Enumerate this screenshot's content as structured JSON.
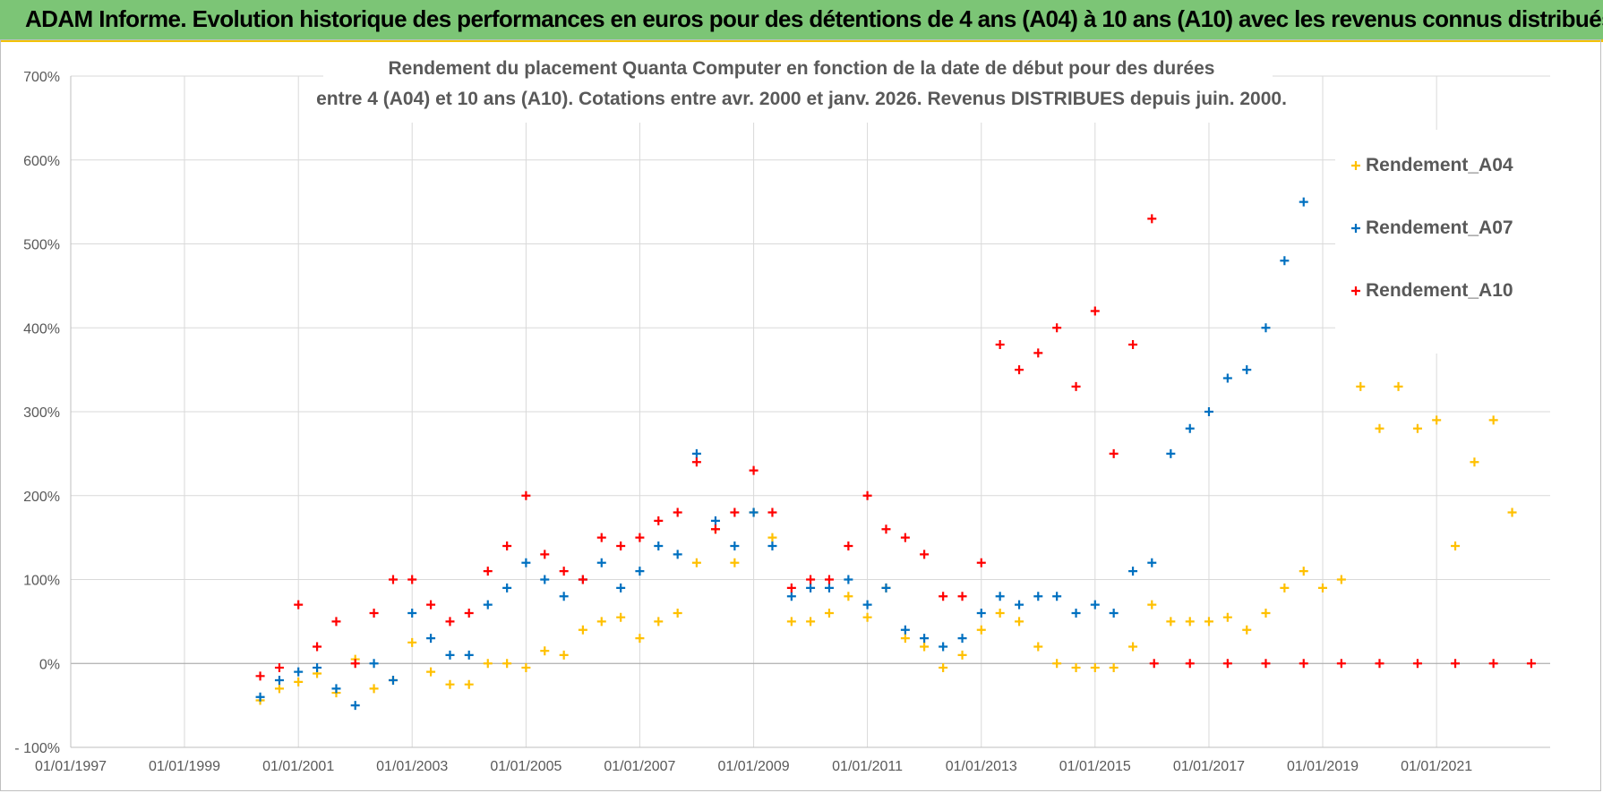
{
  "banner": {
    "text": "ADAM Informe. Evolution historique des performances en euros pour des détentions de 4 ans (A04) à 10 ans (A10) avec les revenus connus distribués"
  },
  "chart_data": {
    "type": "scatter",
    "title_lines": [
      "Rendement du placement Quanta Computer  en fonction de la date de début pour des durées",
      "entre 4 (A04) et 10 ans (A10).  Cotations entre avr. 2000 et janv. 2026. Revenus DISTRIBUES depuis juin. 2000."
    ],
    "xlim": [
      "1997-01-01",
      "2022-12-31"
    ],
    "ylim": [
      -100,
      700
    ],
    "x_ticks": [
      "01/01/1997",
      "01/01/1999",
      "01/01/2001",
      "01/01/2003",
      "01/01/2005",
      "01/01/2007",
      "01/01/2009",
      "01/01/2011",
      "01/01/2013",
      "01/01/2015",
      "01/01/2017",
      "01/01/2019",
      "01/01/2021"
    ],
    "x_tick_dates": [
      "1997-01-01",
      "1999-01-01",
      "2001-01-01",
      "2003-01-01",
      "2005-01-01",
      "2007-01-01",
      "2009-01-01",
      "2011-01-01",
      "2013-01-01",
      "2015-01-01",
      "2017-01-01",
      "2019-01-01",
      "2021-01-01"
    ],
    "y_ticks": [
      -100,
      0,
      100,
      200,
      300,
      400,
      500,
      600,
      700
    ],
    "y_tick_labels": [
      "- 100%",
      "0%",
      "100%",
      "200%",
      "300%",
      "400%",
      "500%",
      "600%",
      "700%"
    ],
    "grid": true,
    "legend_position": "top-right",
    "marker": "+",
    "series": [
      {
        "name": "Rendement_A04",
        "color": "#ffc000",
        "points": [
          [
            "2000-05-01",
            -44
          ],
          [
            "2000-09-01",
            -30
          ],
          [
            "2001-01-01",
            -22
          ],
          [
            "2001-05-01",
            -12
          ],
          [
            "2001-09-01",
            -35
          ],
          [
            "2002-01-01",
            5
          ],
          [
            "2002-05-01",
            -30
          ],
          [
            "2002-09-01",
            -20
          ],
          [
            "2003-01-01",
            25
          ],
          [
            "2003-05-01",
            -10
          ],
          [
            "2003-09-01",
            -25
          ],
          [
            "2004-01-01",
            -25
          ],
          [
            "2004-05-01",
            0
          ],
          [
            "2004-09-01",
            0
          ],
          [
            "2005-01-01",
            -5
          ],
          [
            "2005-05-01",
            15
          ],
          [
            "2005-09-01",
            10
          ],
          [
            "2006-01-01",
            40
          ],
          [
            "2006-05-01",
            50
          ],
          [
            "2006-09-01",
            55
          ],
          [
            "2007-01-01",
            30
          ],
          [
            "2007-05-01",
            50
          ],
          [
            "2007-09-01",
            60
          ],
          [
            "2008-01-01",
            120
          ],
          [
            "2008-05-01",
            160
          ],
          [
            "2008-09-01",
            120
          ],
          [
            "2009-01-01",
            180
          ],
          [
            "2009-05-01",
            150
          ],
          [
            "2009-09-01",
            50
          ],
          [
            "2010-01-01",
            50
          ],
          [
            "2010-05-01",
            60
          ],
          [
            "2010-09-01",
            80
          ],
          [
            "2011-01-01",
            55
          ],
          [
            "2011-05-01",
            90
          ],
          [
            "2011-09-01",
            30
          ],
          [
            "2012-01-01",
            20
          ],
          [
            "2012-05-01",
            -5
          ],
          [
            "2012-09-01",
            10
          ],
          [
            "2013-01-01",
            40
          ],
          [
            "2013-05-01",
            60
          ],
          [
            "2013-09-01",
            50
          ],
          [
            "2014-01-01",
            20
          ],
          [
            "2014-05-01",
            0
          ],
          [
            "2014-09-01",
            -5
          ],
          [
            "2015-01-01",
            -5
          ],
          [
            "2015-05-01",
            -5
          ],
          [
            "2015-09-01",
            20
          ],
          [
            "2016-01-01",
            70
          ],
          [
            "2016-05-01",
            50
          ],
          [
            "2016-09-01",
            50
          ],
          [
            "2017-01-01",
            50
          ],
          [
            "2017-05-01",
            55
          ],
          [
            "2017-09-01",
            40
          ],
          [
            "2018-01-01",
            60
          ],
          [
            "2018-05-01",
            90
          ],
          [
            "2018-09-01",
            110
          ],
          [
            "2019-01-01",
            90
          ],
          [
            "2019-05-01",
            100
          ],
          [
            "2019-09-01",
            330
          ],
          [
            "2020-01-01",
            280
          ],
          [
            "2020-05-01",
            330
          ],
          [
            "2020-09-01",
            280
          ],
          [
            "2021-01-01",
            290
          ],
          [
            "2021-05-01",
            140
          ],
          [
            "2021-09-01",
            240
          ],
          [
            "2022-01-01",
            290
          ],
          [
            "2022-05-01",
            180
          ]
        ]
      },
      {
        "name": "Rendement_A07",
        "color": "#0070c0",
        "points": [
          [
            "2000-05-01",
            -40
          ],
          [
            "2000-09-01",
            -20
          ],
          [
            "2001-01-01",
            -10
          ],
          [
            "2001-05-01",
            -5
          ],
          [
            "2001-09-01",
            -30
          ],
          [
            "2002-01-01",
            -50
          ],
          [
            "2002-05-01",
            0
          ],
          [
            "2002-09-01",
            -20
          ],
          [
            "2003-01-01",
            60
          ],
          [
            "2003-05-01",
            30
          ],
          [
            "2003-09-01",
            10
          ],
          [
            "2004-01-01",
            10
          ],
          [
            "2004-05-01",
            70
          ],
          [
            "2004-09-01",
            90
          ],
          [
            "2005-01-01",
            120
          ],
          [
            "2005-05-01",
            100
          ],
          [
            "2005-09-01",
            80
          ],
          [
            "2006-01-01",
            100
          ],
          [
            "2006-05-01",
            120
          ],
          [
            "2006-09-01",
            90
          ],
          [
            "2007-01-01",
            110
          ],
          [
            "2007-05-01",
            140
          ],
          [
            "2007-09-01",
            130
          ],
          [
            "2008-01-01",
            250
          ],
          [
            "2008-05-01",
            170
          ],
          [
            "2008-09-01",
            140
          ],
          [
            "2009-01-01",
            180
          ],
          [
            "2009-05-01",
            140
          ],
          [
            "2009-09-01",
            80
          ],
          [
            "2010-01-01",
            90
          ],
          [
            "2010-05-01",
            90
          ],
          [
            "2010-09-01",
            100
          ],
          [
            "2011-01-01",
            70
          ],
          [
            "2011-05-01",
            90
          ],
          [
            "2011-09-01",
            40
          ],
          [
            "2012-01-01",
            30
          ],
          [
            "2012-05-01",
            20
          ],
          [
            "2012-09-01",
            30
          ],
          [
            "2013-01-01",
            60
          ],
          [
            "2013-05-01",
            80
          ],
          [
            "2013-09-01",
            70
          ],
          [
            "2014-01-01",
            80
          ],
          [
            "2014-05-01",
            80
          ],
          [
            "2014-09-01",
            60
          ],
          [
            "2015-01-01",
            70
          ],
          [
            "2015-05-01",
            60
          ],
          [
            "2015-09-01",
            110
          ],
          [
            "2016-01-01",
            120
          ],
          [
            "2016-05-01",
            250
          ],
          [
            "2016-09-01",
            280
          ],
          [
            "2017-01-01",
            300
          ],
          [
            "2017-05-01",
            340
          ],
          [
            "2017-09-01",
            350
          ],
          [
            "2018-01-01",
            400
          ],
          [
            "2018-05-01",
            480
          ],
          [
            "2018-09-01",
            550
          ]
        ]
      },
      {
        "name": "Rendement_A10",
        "color": "#ff0000",
        "points": [
          [
            "2000-05-01",
            -15
          ],
          [
            "2000-09-01",
            -5
          ],
          [
            "2001-01-01",
            70
          ],
          [
            "2001-05-01",
            20
          ],
          [
            "2001-09-01",
            50
          ],
          [
            "2002-01-01",
            0
          ],
          [
            "2002-05-01",
            60
          ],
          [
            "2002-09-01",
            100
          ],
          [
            "2003-01-01",
            100
          ],
          [
            "2003-05-01",
            70
          ],
          [
            "2003-09-01",
            50
          ],
          [
            "2004-01-01",
            60
          ],
          [
            "2004-05-01",
            110
          ],
          [
            "2004-09-01",
            140
          ],
          [
            "2005-01-01",
            200
          ],
          [
            "2005-05-01",
            130
          ],
          [
            "2005-09-01",
            110
          ],
          [
            "2006-01-01",
            100
          ],
          [
            "2006-05-01",
            150
          ],
          [
            "2006-09-01",
            140
          ],
          [
            "2007-01-01",
            150
          ],
          [
            "2007-05-01",
            170
          ],
          [
            "2007-09-01",
            180
          ],
          [
            "2008-01-01",
            240
          ],
          [
            "2008-05-01",
            160
          ],
          [
            "2008-09-01",
            180
          ],
          [
            "2009-01-01",
            230
          ],
          [
            "2009-05-01",
            180
          ],
          [
            "2009-09-01",
            90
          ],
          [
            "2010-01-01",
            100
          ],
          [
            "2010-05-01",
            100
          ],
          [
            "2010-09-01",
            140
          ],
          [
            "2011-01-01",
            200
          ],
          [
            "2011-05-01",
            160
          ],
          [
            "2011-09-01",
            150
          ],
          [
            "2012-01-01",
            130
          ],
          [
            "2012-05-01",
            80
          ],
          [
            "2012-09-01",
            80
          ],
          [
            "2013-01-01",
            120
          ],
          [
            "2013-05-01",
            380
          ],
          [
            "2013-09-01",
            350
          ],
          [
            "2014-01-01",
            370
          ],
          [
            "2014-05-01",
            400
          ],
          [
            "2014-09-01",
            330
          ],
          [
            "2015-01-01",
            420
          ],
          [
            "2015-05-01",
            250
          ],
          [
            "2015-09-01",
            380
          ],
          [
            "2016-01-01",
            530
          ],
          [
            "2016-01-15",
            0
          ],
          [
            "2016-09-01",
            0
          ],
          [
            "2017-05-01",
            0
          ],
          [
            "2018-01-01",
            0
          ],
          [
            "2018-09-01",
            0
          ],
          [
            "2019-05-01",
            0
          ],
          [
            "2020-01-01",
            0
          ],
          [
            "2020-09-01",
            0
          ],
          [
            "2021-05-01",
            0
          ],
          [
            "2022-01-01",
            0
          ],
          [
            "2022-09-01",
            0
          ]
        ]
      }
    ]
  }
}
